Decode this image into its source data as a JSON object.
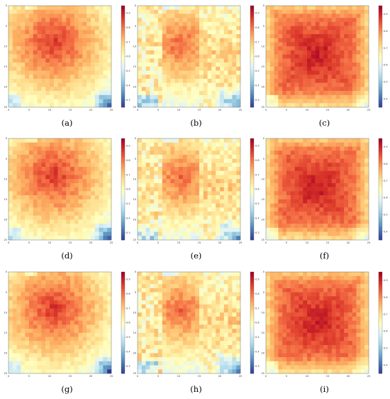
{
  "chart_data": [
    {
      "caption": "(a)",
      "type": "heatmap",
      "variant": "a",
      "grid_size": 25,
      "colormap": "RdYlBu_r",
      "xticks": [
        "0",
        "5",
        "10",
        "15",
        "20",
        "25"
      ],
      "yticks": [
        "0",
        "5",
        "10",
        "15",
        "20",
        "25"
      ],
      "colorbar_ticks": [
        "0.3",
        "0.4",
        "0.5",
        "0.6",
        "0.7",
        "0.8",
        "0.9"
      ],
      "vmin": 0.25,
      "vmax": 0.95
    },
    {
      "caption": "(b)",
      "type": "heatmap",
      "variant": "b",
      "grid_size": 25,
      "colormap": "RdYlBu_r",
      "xticks": [
        "0",
        "5",
        "10",
        "15",
        "20",
        "25"
      ],
      "yticks": [
        "0",
        "5",
        "10",
        "15",
        "20",
        "25"
      ],
      "colorbar_ticks": [
        "0.3",
        "0.4",
        "0.5",
        "0.6",
        "0.7",
        "0.8",
        "0.9"
      ],
      "vmin": 0.25,
      "vmax": 0.95
    },
    {
      "caption": "(c)",
      "type": "heatmap",
      "variant": "c",
      "grid_size": 25,
      "colormap": "RdYlBu_r",
      "xticks": [
        "0",
        "5",
        "10",
        "15",
        "20",
        "25"
      ],
      "yticks": [
        "0",
        "5",
        "10",
        "15",
        "20",
        "25"
      ],
      "colorbar_ticks": [
        "0.4",
        "0.5",
        "0.6",
        "0.7",
        "0.8",
        "0.9"
      ],
      "vmin": 0.35,
      "vmax": 0.95
    },
    {
      "caption": "(d)",
      "type": "heatmap",
      "variant": "a",
      "grid_size": 25,
      "colormap": "RdYlBu_r",
      "xticks": [
        "0",
        "5",
        "10",
        "15",
        "20",
        "25"
      ],
      "yticks": [
        "0",
        "5",
        "10",
        "15",
        "20",
        "25"
      ],
      "colorbar_ticks": [
        "0.3",
        "0.4",
        "0.5",
        "0.6",
        "0.7",
        "0.8",
        "0.9"
      ],
      "vmin": 0.25,
      "vmax": 0.95
    },
    {
      "caption": "(e)",
      "type": "heatmap",
      "variant": "b",
      "grid_size": 25,
      "colormap": "RdYlBu_r",
      "xticks": [
        "0",
        "5",
        "10",
        "15",
        "20",
        "25"
      ],
      "yticks": [
        "0",
        "5",
        "10",
        "15",
        "20",
        "25"
      ],
      "colorbar_ticks": [
        "0.3",
        "0.4",
        "0.5",
        "0.6",
        "0.7",
        "0.8",
        "0.9"
      ],
      "vmin": 0.25,
      "vmax": 0.95
    },
    {
      "caption": "(f)",
      "type": "heatmap",
      "variant": "c",
      "grid_size": 25,
      "colormap": "RdYlBu_r",
      "xticks": [
        "0",
        "5",
        "10",
        "15",
        "20",
        "25"
      ],
      "yticks": [
        "0",
        "5",
        "10",
        "15",
        "20",
        "25"
      ],
      "colorbar_ticks": [
        "0.4",
        "0.5",
        "0.6",
        "0.7",
        "0.8",
        "0.9"
      ],
      "vmin": 0.35,
      "vmax": 0.95
    },
    {
      "caption": "(g)",
      "type": "heatmap",
      "variant": "a",
      "grid_size": 25,
      "colormap": "RdYlBu_r",
      "xticks": [
        "0",
        "5",
        "10",
        "15",
        "20",
        "25"
      ],
      "yticks": [
        "0",
        "5",
        "10",
        "15",
        "20",
        "25"
      ],
      "colorbar_ticks": [
        "0.3",
        "0.4",
        "0.5",
        "0.6",
        "0.7",
        "0.8",
        "0.9"
      ],
      "vmin": 0.25,
      "vmax": 0.95
    },
    {
      "caption": "(h)",
      "type": "heatmap",
      "variant": "b",
      "grid_size": 25,
      "colormap": "RdYlBu_r",
      "xticks": [
        "0",
        "5",
        "10",
        "15",
        "20",
        "25"
      ],
      "yticks": [
        "0",
        "5",
        "10",
        "15",
        "20",
        "25"
      ],
      "colorbar_ticks": [
        "0.3",
        "0.4",
        "0.5",
        "0.6",
        "0.7",
        "0.8",
        "0.9"
      ],
      "vmin": 0.25,
      "vmax": 0.95
    },
    {
      "caption": "(i)",
      "type": "heatmap",
      "variant": "c",
      "grid_size": 25,
      "colormap": "RdYlBu_r",
      "xticks": [
        "0",
        "5",
        "10",
        "15",
        "20",
        "25"
      ],
      "yticks": [
        "0",
        "5",
        "10",
        "15",
        "20",
        "25"
      ],
      "colorbar_ticks": [
        "0.4",
        "0.5",
        "0.6",
        "0.7",
        "0.8",
        "0.9"
      ],
      "vmin": 0.35,
      "vmax": 0.95
    }
  ]
}
